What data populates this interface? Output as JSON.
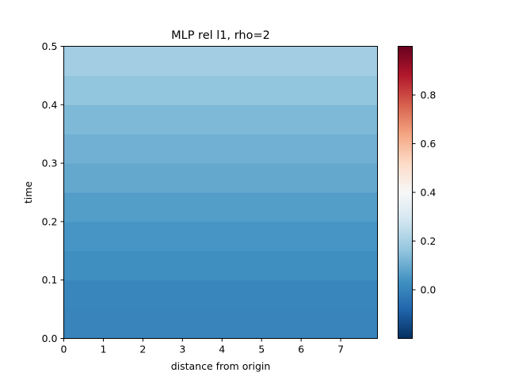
{
  "chart_data": {
    "type": "heatmap",
    "title": "MLP rel l1, rho=2",
    "xlabel": "distance from origin",
    "ylabel": "time",
    "xlim": [
      0,
      7.93
    ],
    "ylim": [
      0,
      0.5
    ],
    "x_ticks": [
      0,
      1,
      2,
      3,
      4,
      5,
      6,
      7
    ],
    "y_ticks": [
      0.0,
      0.1,
      0.2,
      0.3,
      0.4,
      0.5
    ],
    "y_tick_labels": [
      "0.0",
      "0.1",
      "0.2",
      "0.3",
      "0.4",
      "0.5"
    ],
    "colormap": "RdBu_r",
    "colorbar": {
      "vmin": -0.2,
      "vmax": 1.0,
      "ticks": [
        0.0,
        0.2,
        0.4,
        0.6,
        0.8
      ],
      "tick_labels": [
        "0.0",
        "0.2",
        "0.4",
        "0.6",
        "0.8"
      ]
    },
    "time_bands": [
      0.0,
      0.05,
      0.1,
      0.15,
      0.2,
      0.25,
      0.3,
      0.35,
      0.4,
      0.45
    ],
    "band_values": [
      0.0,
      0.005,
      0.03,
      0.045,
      0.065,
      0.09,
      0.11,
      0.13,
      0.16,
      0.19
    ],
    "grid": false
  }
}
